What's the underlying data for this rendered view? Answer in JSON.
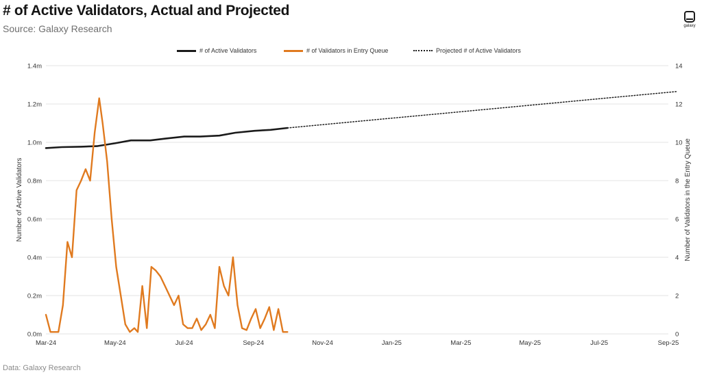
{
  "title": "# of Active Validators, Actual and Projected",
  "subtitle": "Source: Galaxy Research",
  "logo_text": "galaxy",
  "footer": "Data: Galaxy Research",
  "colors": {
    "active": "#1a1a1a",
    "queue": "#e07a1f",
    "grid": "#e3e3e3"
  },
  "chart_data": {
    "type": "line",
    "title": "# of Active Validators, Actual and Projected",
    "legend": {
      "placement": "top-center",
      "entries": [
        "# of Active Validators",
        "# of Validators in Entry Queue",
        "Projected # of Active Validators"
      ]
    },
    "grid": true,
    "x_axis": {
      "tick_labels": [
        "Mar-24",
        "May-24",
        "Jul-24",
        "Sep-24",
        "Nov-24",
        "Jan-25",
        "Mar-25",
        "May-25",
        "Jul-25",
        "Sep-25"
      ],
      "range": [
        "2024-03-01",
        "2025-09-01"
      ]
    },
    "y_left": {
      "label": "Number of Active Validators",
      "ticks": [
        0,
        0.2,
        0.4,
        0.6,
        0.8,
        1.0,
        1.2,
        1.4
      ],
      "tick_labels": [
        "0.0m",
        "0.2m",
        "0.4m",
        "0.6m",
        "0.8m",
        "1.0m",
        "1.2m",
        "1.4m"
      ],
      "range": [
        0,
        1.4
      ]
    },
    "y_right": {
      "label": "Number of Validators in the Entry Queue",
      "ticks": [
        0,
        2,
        4,
        6,
        8,
        10,
        12,
        14
      ],
      "tick_labels": [
        "0",
        "2",
        "4",
        "6",
        "8",
        "10",
        "12",
        "14"
      ],
      "range": [
        0,
        14
      ]
    },
    "series": [
      {
        "name": "# of Active Validators",
        "axis": "left",
        "style": "solid",
        "x": [
          "2024-03-01",
          "2024-03-15",
          "2024-04-01",
          "2024-04-15",
          "2024-05-01",
          "2024-05-15",
          "2024-06-01",
          "2024-06-15",
          "2024-07-01",
          "2024-07-15",
          "2024-08-01",
          "2024-08-15",
          "2024-09-01",
          "2024-09-15",
          "2024-09-30"
        ],
        "y": [
          0.97,
          0.975,
          0.977,
          0.98,
          0.995,
          1.01,
          1.01,
          1.02,
          1.03,
          1.03,
          1.035,
          1.05,
          1.06,
          1.065,
          1.075
        ]
      },
      {
        "name": "# of Validators in Entry Queue",
        "axis": "right",
        "style": "solid",
        "x": [
          "2024-03-01",
          "2024-03-05",
          "2024-03-08",
          "2024-03-12",
          "2024-03-16",
          "2024-03-20",
          "2024-03-24",
          "2024-03-28",
          "2024-04-01",
          "2024-04-05",
          "2024-04-09",
          "2024-04-13",
          "2024-04-17",
          "2024-04-20",
          "2024-04-24",
          "2024-04-28",
          "2024-05-02",
          "2024-05-06",
          "2024-05-10",
          "2024-05-14",
          "2024-05-18",
          "2024-05-21",
          "2024-05-25",
          "2024-05-29",
          "2024-06-02",
          "2024-06-06",
          "2024-06-10",
          "2024-06-14",
          "2024-06-18",
          "2024-06-22",
          "2024-06-26",
          "2024-06-30",
          "2024-07-04",
          "2024-07-08",
          "2024-07-12",
          "2024-07-16",
          "2024-07-20",
          "2024-07-24",
          "2024-07-28",
          "2024-08-01",
          "2024-08-05",
          "2024-08-09",
          "2024-08-13",
          "2024-08-17",
          "2024-08-21",
          "2024-08-25",
          "2024-08-29",
          "2024-09-02",
          "2024-09-06",
          "2024-09-10",
          "2024-09-14",
          "2024-09-18",
          "2024-09-22",
          "2024-09-26",
          "2024-09-30"
        ],
        "y": [
          1.0,
          0.1,
          0.1,
          0.1,
          1.5,
          4.8,
          4.0,
          7.5,
          8.0,
          8.6,
          8.0,
          10.5,
          12.3,
          11.0,
          9.0,
          6.0,
          3.5,
          2.0,
          0.5,
          0.1,
          0.3,
          0.1,
          2.5,
          0.3,
          3.5,
          3.3,
          3.0,
          2.5,
          2.0,
          1.5,
          2.0,
          0.5,
          0.3,
          0.3,
          0.8,
          0.2,
          0.5,
          1.0,
          0.3,
          3.5,
          2.5,
          2.0,
          4.0,
          1.5,
          0.3,
          0.2,
          0.8,
          1.3,
          0.3,
          0.8,
          1.4,
          0.2,
          1.3,
          0.1,
          0.1
        ]
      },
      {
        "name": "Projected # of Active Validators",
        "axis": "left",
        "style": "dotted",
        "x": [
          "2024-09-30",
          "2025-09-08"
        ],
        "y": [
          1.075,
          1.265
        ]
      }
    ]
  }
}
